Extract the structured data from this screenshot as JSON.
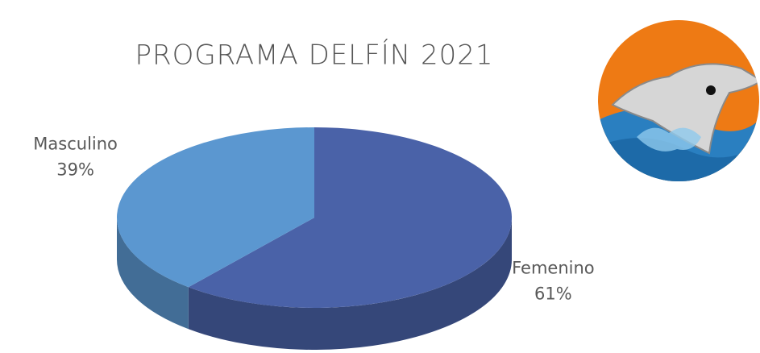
{
  "chart_data": {
    "type": "pie",
    "title": "PROGRAMA DELFÍN 2021",
    "categories": [
      "Femenino",
      "Masculino"
    ],
    "values": [
      61,
      39
    ],
    "value_labels": [
      "61%",
      "39%"
    ],
    "colors": [
      "#4a62a8",
      "#5b97d0"
    ]
  }
}
